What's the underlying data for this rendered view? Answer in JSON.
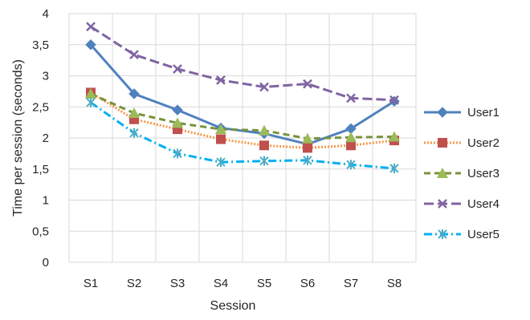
{
  "chart_data": {
    "type": "line",
    "title": "",
    "xlabel": "Session",
    "ylabel": "Time per session (seconds)",
    "categories": [
      "S1",
      "S2",
      "S3",
      "S4",
      "S5",
      "S6",
      "S7",
      "S8"
    ],
    "ylim": [
      0,
      4
    ],
    "yticks": [
      "0",
      "0,5",
      "1",
      "1,5",
      "2",
      "2,5",
      "3",
      "3,5",
      "4"
    ],
    "grid": true,
    "legend_position": "right",
    "series": [
      {
        "name": "User1",
        "values": [
          3.5,
          2.71,
          2.45,
          2.16,
          2.07,
          1.9,
          2.15,
          2.59
        ],
        "color": "#4f81bd",
        "marker": "diamond",
        "dash": "solid"
      },
      {
        "name": "User2",
        "values": [
          2.73,
          2.3,
          2.14,
          1.98,
          1.88,
          1.84,
          1.88,
          1.96
        ],
        "color": "#f79646",
        "marker_color": "#c0504d",
        "marker": "square",
        "dash": "dotted"
      },
      {
        "name": "User3",
        "values": [
          2.71,
          2.4,
          2.24,
          2.14,
          2.12,
          1.99,
          2.01,
          2.02
        ],
        "color": "#77933c",
        "marker_color": "#9bbb59",
        "marker": "triangle",
        "dash": "dashed"
      },
      {
        "name": "User4",
        "values": [
          3.79,
          3.34,
          3.11,
          2.93,
          2.82,
          2.87,
          2.64,
          2.61
        ],
        "color": "#8064a2",
        "marker": "x",
        "dash": "longdash"
      },
      {
        "name": "User5",
        "values": [
          2.57,
          2.08,
          1.75,
          1.61,
          1.63,
          1.64,
          1.57,
          1.51
        ],
        "color": "#00b0f0",
        "marker_color": "#4bacc6",
        "marker": "star",
        "dash": "dashdot"
      }
    ]
  }
}
